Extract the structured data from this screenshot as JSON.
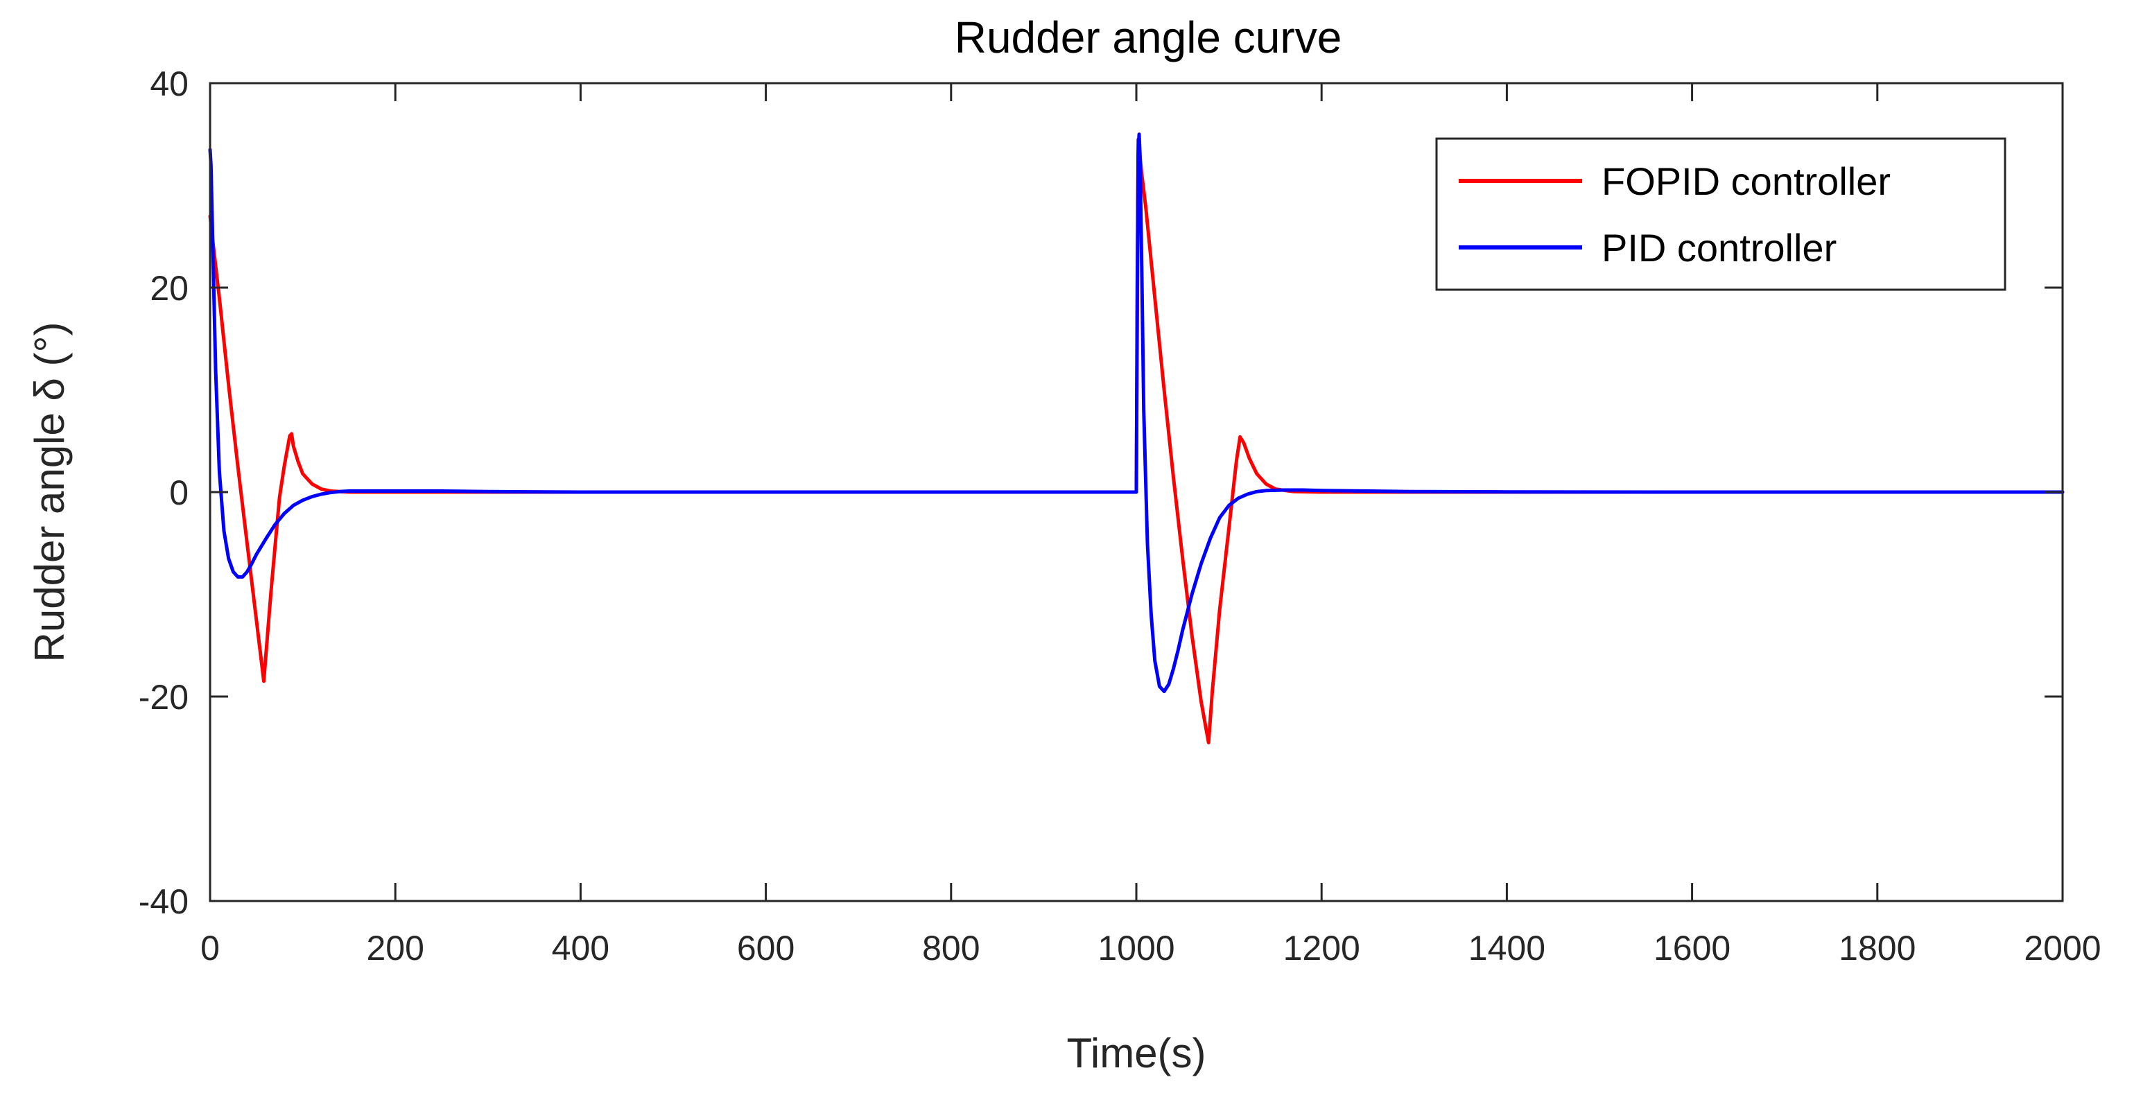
{
  "chart_data": {
    "type": "line",
    "title": "Rudder angle curve",
    "xlabel": "Time(s)",
    "ylabel": "Rudder angle δ (°)",
    "xlim": [
      0,
      2000
    ],
    "ylim": [
      -40,
      40
    ],
    "x_ticks": [
      0,
      200,
      400,
      600,
      800,
      1000,
      1200,
      1400,
      1600,
      1800,
      2000
    ],
    "x_tick_labels": [
      "0",
      "200",
      "400",
      "600",
      "800",
      "1000",
      "1200",
      "1400",
      "1600",
      "1800",
      "2000"
    ],
    "y_ticks": [
      -40,
      -20,
      0,
      20,
      40
    ],
    "y_tick_labels": [
      "-40",
      "-20",
      "0",
      "20",
      "40"
    ],
    "grid": false,
    "legend_position": "top-right",
    "series": [
      {
        "name": "FOPID controller",
        "color": "#ff0000",
        "x": [
          0,
          3,
          10,
          20,
          30,
          40,
          50,
          58,
          62,
          66,
          70,
          75,
          80,
          86,
          88,
          90,
          95,
          100,
          110,
          120,
          130,
          150,
          200,
          400,
          600,
          800,
          1000,
          1002,
          1006,
          1010,
          1020,
          1030,
          1040,
          1050,
          1060,
          1070,
          1078,
          1082,
          1090,
          1100,
          1108,
          1112,
          1116,
          1122,
          1130,
          1140,
          1150,
          1170,
          1200,
          1400,
          1600,
          1800,
          2000
        ],
        "y": [
          27,
          24.5,
          19,
          10.5,
          2.5,
          -5,
          -12.5,
          -18.5,
          -14,
          -9.5,
          -5.5,
          -0.5,
          2.5,
          5.5,
          5.7,
          4.5,
          3,
          1.8,
          0.8,
          0.3,
          0.1,
          0,
          0,
          0,
          0,
          0,
          0,
          34.5,
          31,
          28,
          19,
          10,
          1.5,
          -6.5,
          -14,
          -20.5,
          -24.5,
          -19.5,
          -11.5,
          -3.5,
          3,
          5.4,
          4.8,
          3.3,
          1.8,
          0.8,
          0.3,
          0.05,
          0,
          0,
          0,
          0,
          0
        ]
      },
      {
        "name": "PID controller",
        "color": "#0000ff",
        "x": [
          0,
          1,
          3,
          6,
          10,
          15,
          20,
          25,
          30,
          35,
          40,
          45,
          50,
          60,
          70,
          80,
          90,
          100,
          110,
          120,
          130,
          140,
          150,
          160,
          180,
          200,
          250,
          300,
          400,
          600,
          800,
          998,
          1000,
          1001,
          1002,
          1003,
          1004,
          1006,
          1008,
          1012,
          1016,
          1020,
          1025,
          1030,
          1035,
          1040,
          1045,
          1050,
          1060,
          1070,
          1080,
          1090,
          1100,
          1110,
          1120,
          1130,
          1140,
          1160,
          1180,
          1200,
          1250,
          1300,
          1400,
          1600,
          1800,
          2000
        ],
        "y": [
          33.5,
          32,
          24,
          12,
          2,
          -3.8,
          -6.5,
          -7.8,
          -8.3,
          -8.3,
          -7.8,
          -7,
          -6.1,
          -4.6,
          -3.2,
          -2.1,
          -1.3,
          -0.8,
          -0.45,
          -0.2,
          -0.05,
          0.05,
          0.1,
          0.1,
          0.1,
          0.1,
          0.1,
          0.05,
          0,
          0,
          0,
          0,
          0,
          20,
          33,
          35,
          33,
          21,
          8,
          -5,
          -12,
          -16.5,
          -19,
          -19.5,
          -18.8,
          -17.3,
          -15.5,
          -13.5,
          -10,
          -7,
          -4.5,
          -2.5,
          -1.3,
          -0.6,
          -0.2,
          0.05,
          0.15,
          0.2,
          0.2,
          0.15,
          0.1,
          0.05,
          0.02,
          0,
          0,
          0
        ]
      }
    ]
  }
}
